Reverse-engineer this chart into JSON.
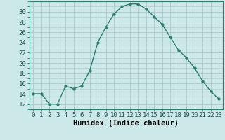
{
  "x": [
    0,
    1,
    2,
    3,
    4,
    5,
    6,
    7,
    8,
    9,
    10,
    11,
    12,
    13,
    14,
    15,
    16,
    17,
    18,
    19,
    20,
    21,
    22,
    23
  ],
  "y": [
    14,
    14,
    12,
    12,
    15.5,
    15,
    15.5,
    18.5,
    24,
    27,
    29.5,
    31,
    31.5,
    31.5,
    30.5,
    29,
    27.5,
    25,
    22.5,
    21,
    19,
    16.5,
    14.5,
    13
  ],
  "line_color": "#2d7d6e",
  "marker": "o",
  "marker_size": 2.5,
  "bg_color": "#cce8e8",
  "grid_color": "#a8c8cc",
  "xlabel": "Humidex (Indice chaleur)",
  "xlim": [
    -0.5,
    23.5
  ],
  "ylim": [
    11,
    32
  ],
  "yticks": [
    12,
    14,
    16,
    18,
    20,
    22,
    24,
    26,
    28,
    30
  ],
  "xticks": [
    0,
    1,
    2,
    3,
    4,
    5,
    6,
    7,
    8,
    9,
    10,
    11,
    12,
    13,
    14,
    15,
    16,
    17,
    18,
    19,
    20,
    21,
    22,
    23
  ],
  "xlabel_fontsize": 7.5,
  "tick_fontsize": 6.5
}
